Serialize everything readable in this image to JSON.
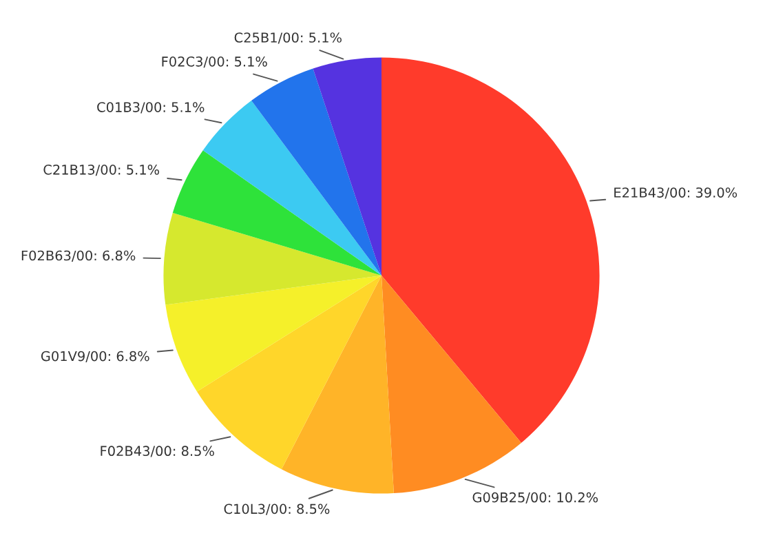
{
  "chart_data": {
    "type": "pie",
    "categories": [
      "E21B43/00",
      "G09B25/00",
      "C10L3/00",
      "F02B43/00",
      "G01V9/00",
      "F02B63/00",
      "C21B13/00",
      "C01B3/00",
      "F02C3/00",
      "C25B1/00"
    ],
    "values": [
      39.0,
      10.2,
      8.5,
      8.5,
      6.8,
      6.8,
      5.1,
      5.1,
      5.1,
      5.1
    ],
    "value_labels": [
      "39.0%",
      "10.2%",
      "8.5%",
      "8.5%",
      "6.8%",
      "6.8%",
      "5.1%",
      "5.1%",
      "5.1%",
      "5.1%"
    ],
    "colors": [
      "#ff3b2b",
      "#ff8c22",
      "#ffb428",
      "#ffd62a",
      "#f5f02a",
      "#d6e82e",
      "#2ee23a",
      "#3ccaf2",
      "#2274ec",
      "#5533e0"
    ]
  }
}
